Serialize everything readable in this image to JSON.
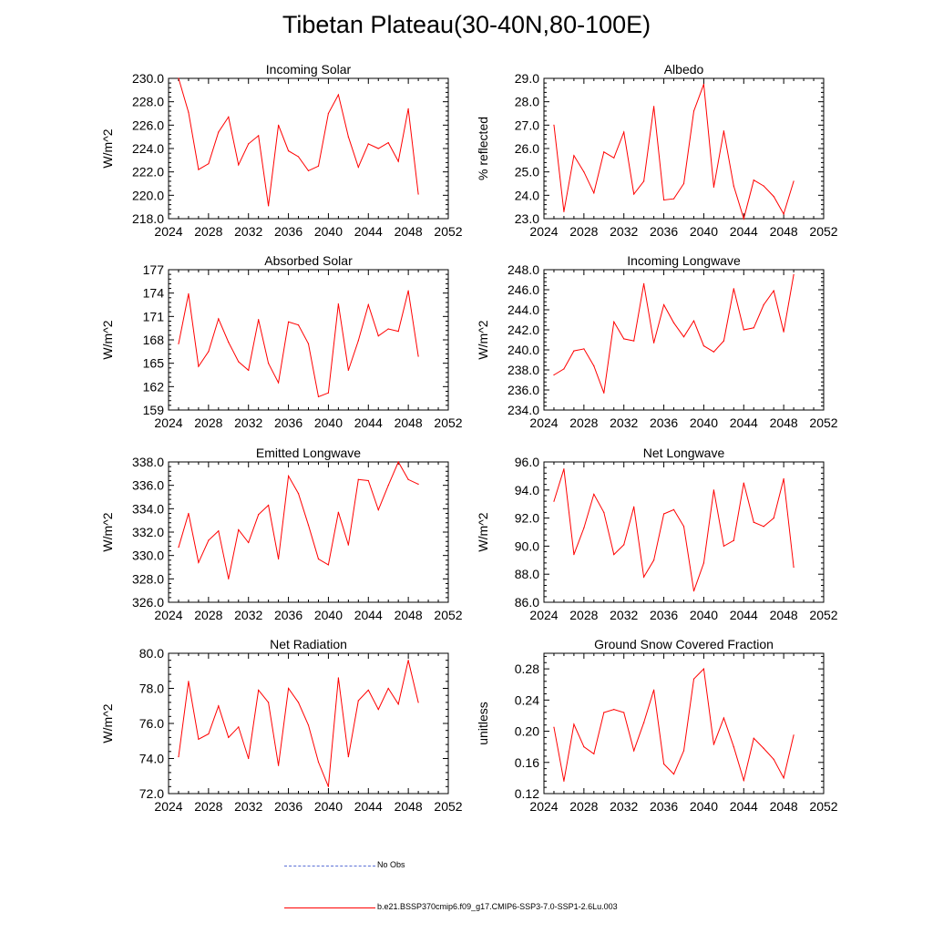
{
  "title": "Tibetan Plateau(30-40N,80-100E)",
  "legend": {
    "obs_label": "No Obs",
    "model_label": "b.e21.BSSP370cmip6.f09_g17.CMIP6-SSP3-7.0-SSP1-2.6Lu.003",
    "obs_color": "#5a6fd6",
    "model_color": "#ff0000"
  },
  "chart_data": [
    {
      "type": "line",
      "title": "Incoming Solar",
      "ylabel": "W/m^2",
      "xlim": [
        2024,
        2052
      ],
      "xticks": [
        2024,
        2028,
        2032,
        2036,
        2040,
        2044,
        2048,
        2052
      ],
      "ylim": [
        218.0,
        230.0
      ],
      "yticks": [
        "218.0",
        "220.0",
        "222.0",
        "224.0",
        "226.0",
        "228.0",
        "230.0"
      ],
      "x": [
        2025,
        2026,
        2027,
        2028,
        2029,
        2030,
        2031,
        2032,
        2033,
        2034,
        2035,
        2036,
        2037,
        2038,
        2039,
        2040,
        2041,
        2042,
        2043,
        2044,
        2045,
        2046,
        2047,
        2048,
        2049
      ],
      "values": [
        230.0,
        227.1,
        222.2,
        222.7,
        225.4,
        226.7,
        222.6,
        224.4,
        225.1,
        219.1,
        226.0,
        223.8,
        223.3,
        222.1,
        222.5,
        227.0,
        228.6,
        225.0,
        222.4,
        224.4,
        224.0,
        224.5,
        222.9,
        227.4,
        220.1
      ],
      "color": "#ff0000"
    },
    {
      "type": "line",
      "title": "Albedo",
      "ylabel": "% reflected",
      "xlim": [
        2024,
        2052
      ],
      "xticks": [
        2024,
        2028,
        2032,
        2036,
        2040,
        2044,
        2048,
        2052
      ],
      "ylim": [
        23.0,
        29.0
      ],
      "yticks": [
        "23.0",
        "24.0",
        "25.0",
        "26.0",
        "27.0",
        "28.0",
        "29.0"
      ],
      "x": [
        2025,
        2026,
        2027,
        2028,
        2029,
        2030,
        2031,
        2032,
        2033,
        2034,
        2035,
        2036,
        2037,
        2038,
        2039,
        2040,
        2041,
        2042,
        2043,
        2044,
        2045,
        2046,
        2047,
        2048,
        2049
      ],
      "values": [
        27.0,
        23.3,
        25.7,
        25.0,
        24.1,
        25.85,
        25.6,
        26.7,
        24.05,
        24.6,
        27.8,
        23.8,
        23.85,
        24.5,
        27.6,
        28.75,
        24.35,
        26.75,
        24.4,
        23.0,
        24.65,
        24.4,
        23.95,
        23.2,
        24.6
      ],
      "color": "#ff0000"
    },
    {
      "type": "line",
      "title": "Absorbed Solar",
      "ylabel": "W/m^2",
      "xlim": [
        2024,
        2052
      ],
      "xticks": [
        2024,
        2028,
        2032,
        2036,
        2040,
        2044,
        2048,
        2052
      ],
      "ylim": [
        159,
        177
      ],
      "yticks": [
        "159",
        "162",
        "165",
        "168",
        "171",
        "174",
        "177"
      ],
      "x": [
        2025,
        2026,
        2027,
        2028,
        2029,
        2030,
        2031,
        2032,
        2033,
        2034,
        2035,
        2036,
        2037,
        2038,
        2039,
        2040,
        2041,
        2042,
        2043,
        2044,
        2045,
        2046,
        2047,
        2048,
        2049
      ],
      "values": [
        167.5,
        173.9,
        164.6,
        166.5,
        170.7,
        167.7,
        165.2,
        164.1,
        170.6,
        165.0,
        162.5,
        170.3,
        169.9,
        167.5,
        160.7,
        161.2,
        172.6,
        164.1,
        167.9,
        172.5,
        168.5,
        169.4,
        169.1,
        174.3,
        165.9
      ],
      "color": "#ff0000"
    },
    {
      "type": "line",
      "title": "Incoming Longwave",
      "ylabel": "W/m^2",
      "xlim": [
        2024,
        2052
      ],
      "xticks": [
        2024,
        2028,
        2032,
        2036,
        2040,
        2044,
        2048,
        2052
      ],
      "ylim": [
        234.0,
        248.0
      ],
      "yticks": [
        "234.0",
        "236.0",
        "238.0",
        "240.0",
        "242.0",
        "244.0",
        "246.0",
        "248.0"
      ],
      "x": [
        2025,
        2026,
        2027,
        2028,
        2029,
        2030,
        2031,
        2032,
        2033,
        2034,
        2035,
        2036,
        2037,
        2038,
        2039,
        2040,
        2041,
        2042,
        2043,
        2044,
        2045,
        2046,
        2047,
        2048,
        2049
      ],
      "values": [
        237.5,
        238.1,
        239.9,
        240.1,
        238.4,
        235.7,
        242.8,
        241.1,
        240.9,
        246.6,
        240.7,
        244.5,
        242.7,
        241.3,
        242.9,
        240.4,
        239.8,
        240.9,
        246.1,
        242.0,
        242.2,
        244.5,
        245.9,
        241.8,
        247.5
      ],
      "color": "#ff0000"
    },
    {
      "type": "line",
      "title": "Emitted Longwave",
      "ylabel": "W/m^2",
      "xlim": [
        2024,
        2052
      ],
      "xticks": [
        2024,
        2028,
        2032,
        2036,
        2040,
        2044,
        2048,
        2052
      ],
      "ylim": [
        326.0,
        338.0
      ],
      "yticks": [
        "326.0",
        "328.0",
        "330.0",
        "332.0",
        "334.0",
        "336.0",
        "338.0"
      ],
      "x": [
        2025,
        2026,
        2027,
        2028,
        2029,
        2030,
        2031,
        2032,
        2033,
        2034,
        2035,
        2036,
        2037,
        2038,
        2039,
        2040,
        2041,
        2042,
        2043,
        2044,
        2045,
        2046,
        2047,
        2048,
        2049
      ],
      "values": [
        330.7,
        333.6,
        329.4,
        331.3,
        332.1,
        328.0,
        332.2,
        331.1,
        333.5,
        334.3,
        329.7,
        336.8,
        335.3,
        332.6,
        329.7,
        329.2,
        333.7,
        330.9,
        336.5,
        336.4,
        333.9,
        336.0,
        338.0,
        336.5,
        336.1
      ],
      "color": "#ff0000"
    },
    {
      "type": "line",
      "title": "Net Longwave",
      "ylabel": "W/m^2",
      "xlim": [
        2024,
        2052
      ],
      "xticks": [
        2024,
        2028,
        2032,
        2036,
        2040,
        2044,
        2048,
        2052
      ],
      "ylim": [
        86.0,
        96.0
      ],
      "yticks": [
        "86.0",
        "88.0",
        "90.0",
        "92.0",
        "94.0",
        "96.0"
      ],
      "x": [
        2025,
        2026,
        2027,
        2028,
        2029,
        2030,
        2031,
        2032,
        2033,
        2034,
        2035,
        2036,
        2037,
        2038,
        2039,
        2040,
        2041,
        2042,
        2043,
        2044,
        2045,
        2046,
        2047,
        2048,
        2049
      ],
      "values": [
        93.2,
        95.5,
        89.4,
        91.3,
        93.7,
        92.4,
        89.4,
        90.1,
        92.8,
        87.8,
        89.0,
        92.3,
        92.6,
        91.4,
        86.8,
        88.8,
        94.0,
        90.0,
        90.4,
        94.5,
        91.7,
        91.4,
        92.0,
        94.8,
        88.5
      ],
      "color": "#ff0000"
    },
    {
      "type": "line",
      "title": "Net Radiation",
      "ylabel": "W/m^2",
      "xlim": [
        2024,
        2052
      ],
      "xticks": [
        2024,
        2028,
        2032,
        2036,
        2040,
        2044,
        2048,
        2052
      ],
      "ylim": [
        72.0,
        80.0
      ],
      "yticks": [
        "72.0",
        "74.0",
        "76.0",
        "78.0",
        "80.0"
      ],
      "x": [
        2025,
        2026,
        2027,
        2028,
        2029,
        2030,
        2031,
        2032,
        2033,
        2034,
        2035,
        2036,
        2037,
        2038,
        2039,
        2040,
        2041,
        2042,
        2043,
        2044,
        2045,
        2046,
        2047,
        2048,
        2049
      ],
      "values": [
        74.1,
        78.4,
        75.1,
        75.4,
        77.0,
        75.2,
        75.8,
        74.0,
        77.9,
        77.2,
        73.6,
        78.0,
        77.2,
        75.9,
        73.8,
        72.4,
        78.6,
        74.1,
        77.3,
        77.9,
        76.8,
        78.0,
        77.1,
        79.6,
        77.2
      ],
      "color": "#ff0000"
    },
    {
      "type": "line",
      "title": "Ground Snow Covered Fraction",
      "ylabel": "unitless",
      "xlim": [
        2024,
        2052
      ],
      "xticks": [
        2024,
        2028,
        2032,
        2036,
        2040,
        2044,
        2048,
        2052
      ],
      "ylim": [
        0.12,
        0.3
      ],
      "yticks": [
        "0.12",
        "0.16",
        "0.20",
        "0.24",
        "0.28"
      ],
      "x": [
        2025,
        2026,
        2027,
        2028,
        2029,
        2030,
        2031,
        2032,
        2033,
        2034,
        2035,
        2036,
        2037,
        2038,
        2039,
        2040,
        2041,
        2042,
        2043,
        2044,
        2045,
        2046,
        2047,
        2048,
        2049
      ],
      "values": [
        0.205,
        0.136,
        0.209,
        0.18,
        0.171,
        0.224,
        0.228,
        0.224,
        0.175,
        0.211,
        0.253,
        0.158,
        0.145,
        0.175,
        0.267,
        0.28,
        0.183,
        0.217,
        0.18,
        0.137,
        0.191,
        0.178,
        0.164,
        0.14,
        0.195
      ],
      "color": "#ff0000"
    }
  ]
}
